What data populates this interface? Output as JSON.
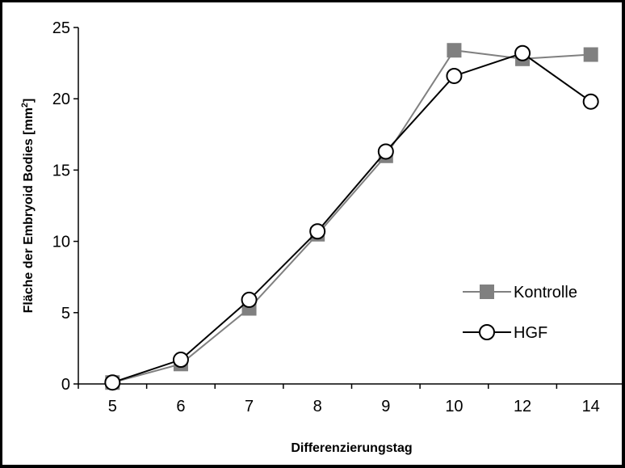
{
  "chart_data": {
    "type": "line",
    "categories": [
      "5",
      "6",
      "7",
      "8",
      "9",
      "10",
      "12",
      "14"
    ],
    "xlabel": "Differenzierungstag",
    "ylabel": "Fläche der Embryoid Bodies [mm",
    "ylabel_sup": "2",
    "ylabel_suffix": "]",
    "ylim": [
      0,
      25
    ],
    "yticks": [
      "0",
      "5",
      "10",
      "15",
      "20",
      "25"
    ],
    "grid": false,
    "legend_position": "right",
    "series": [
      {
        "name": "Kontrolle",
        "values": [
          0.1,
          1.4,
          5.3,
          10.5,
          16.0,
          23.4,
          22.8,
          23.1
        ],
        "color": "#808080",
        "marker": "square"
      },
      {
        "name": "HGF",
        "values": [
          0.1,
          1.7,
          5.9,
          10.7,
          16.3,
          21.6,
          23.2,
          19.8
        ],
        "color": "#000000",
        "marker": "circle-open"
      }
    ]
  }
}
